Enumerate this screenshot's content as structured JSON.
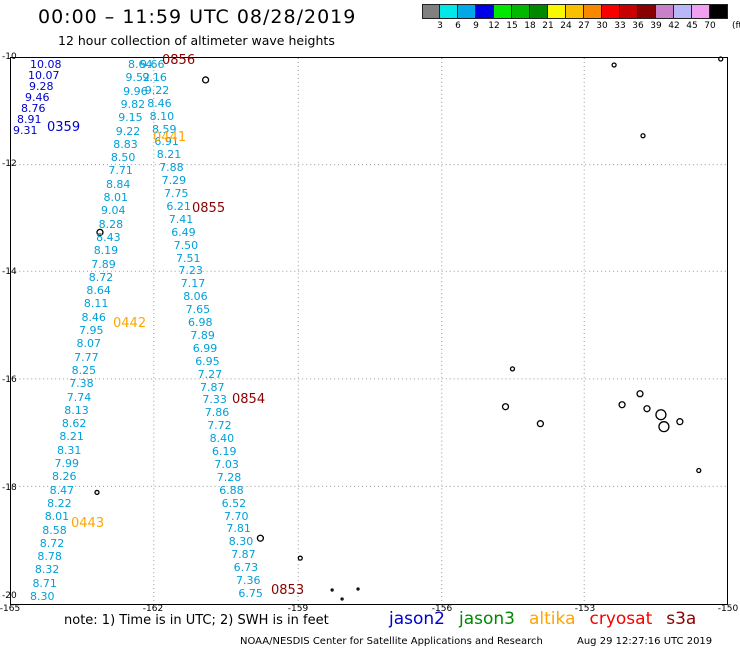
{
  "title": "00:00 – 11:59 UTC 08/28/2019",
  "subtitle": "12 hour collection of altimeter wave heights",
  "scale": {
    "unit_label": "(ft)",
    "colors": [
      "#808080",
      "#00e8e8",
      "#00a8e8",
      "#0000e8",
      "#00e800",
      "#00b800",
      "#008800",
      "#f8f800",
      "#f8c000",
      "#f88800",
      "#f80000",
      "#c80000",
      "#880000",
      "#c880c8",
      "#b8b8f8",
      "#f0a0f0",
      "#000000"
    ],
    "labels": [
      "3",
      "6",
      "9",
      "12",
      "15",
      "18",
      "21",
      "24",
      "27",
      "30",
      "33",
      "36",
      "39",
      "42",
      "45",
      "70"
    ]
  },
  "map": {
    "lat_labels": [
      "-10",
      "-12",
      "-14",
      "-16",
      "-18",
      "-20"
    ],
    "lon_labels": [
      "-165",
      "-162",
      "-159",
      "-156",
      "-153",
      "-150"
    ],
    "grid": true
  },
  "passes": [
    {
      "text": "0856",
      "color": "#8b0000",
      "sat": "s3a"
    },
    {
      "text": "0359",
      "color": "#0000cd",
      "sat": "jason2"
    },
    {
      "text": "0441",
      "color": "#ffa500",
      "sat": "altika"
    },
    {
      "text": "0855",
      "color": "#8b0000",
      "sat": "s3a"
    },
    {
      "text": "0442",
      "color": "#ffa500",
      "sat": "altika"
    },
    {
      "text": "0854",
      "color": "#8b0000",
      "sat": "s3a"
    },
    {
      "text": "0443",
      "color": "#ffa500",
      "sat": "altika"
    },
    {
      "text": "0853",
      "color": "#8b0000",
      "sat": "s3a"
    }
  ],
  "swh_values": {
    "jason2": [
      "10.08",
      "10.07",
      "9.28",
      "9.46",
      "8.76",
      "8.91",
      "9.31"
    ],
    "altika_track1": [
      "8.64",
      "9.52",
      "9.96",
      "9.82",
      "9.15",
      "9.22",
      "8.83",
      "8.50",
      "7.71",
      "8.84",
      "8.01",
      "9.04",
      "8.28",
      "8.43",
      "8.19",
      "7.89",
      "8.72",
      "8.64",
      "8.11",
      "8.46",
      "7.95",
      "8.07",
      "7.77",
      "8.25",
      "7.38",
      "7.74",
      "8.13",
      "8.62",
      "8.21",
      "8.31",
      "7.99",
      "8.26",
      "8.47",
      "8.22",
      "8.01",
      "8.58",
      "8.72",
      "8.78",
      "8.32",
      "8.71",
      "8.30"
    ],
    "s3a_track": [
      "9.66",
      "9.16",
      "9.22",
      "8.46",
      "8.10",
      "8.59",
      "6.91",
      "8.21",
      "7.88",
      "7.29",
      "7.75",
      "6.21",
      "7.41",
      "6.49",
      "7.50",
      "7.51",
      "7.23",
      "7.17",
      "8.06",
      "7.65",
      "6.98",
      "7.89",
      "6.99",
      "6.95",
      "7.27",
      "7.87",
      "7.33",
      "7.86",
      "7.72",
      "8.40",
      "6.19",
      "7.03",
      "7.28",
      "6.88",
      "6.52",
      "7.70",
      "7.81",
      "8.30",
      "7.87",
      "6.73",
      "7.36",
      "6.75"
    ]
  },
  "note": "note:  1) Time is in UTC;  2) SWH is in feet",
  "legend": [
    {
      "label": "jason2",
      "color": "#0000cd"
    },
    {
      "label": "jason3",
      "color": "#008800"
    },
    {
      "label": "altika",
      "color": "#ffa500"
    },
    {
      "label": "cryosat",
      "color": "#f80000"
    },
    {
      "label": "s3a",
      "color": "#8b0000"
    }
  ],
  "footer_left": "NOAA/NESDIS Center for Satellite Applications and Research",
  "footer_right": "Aug 29 12:27:16 UTC 2019"
}
